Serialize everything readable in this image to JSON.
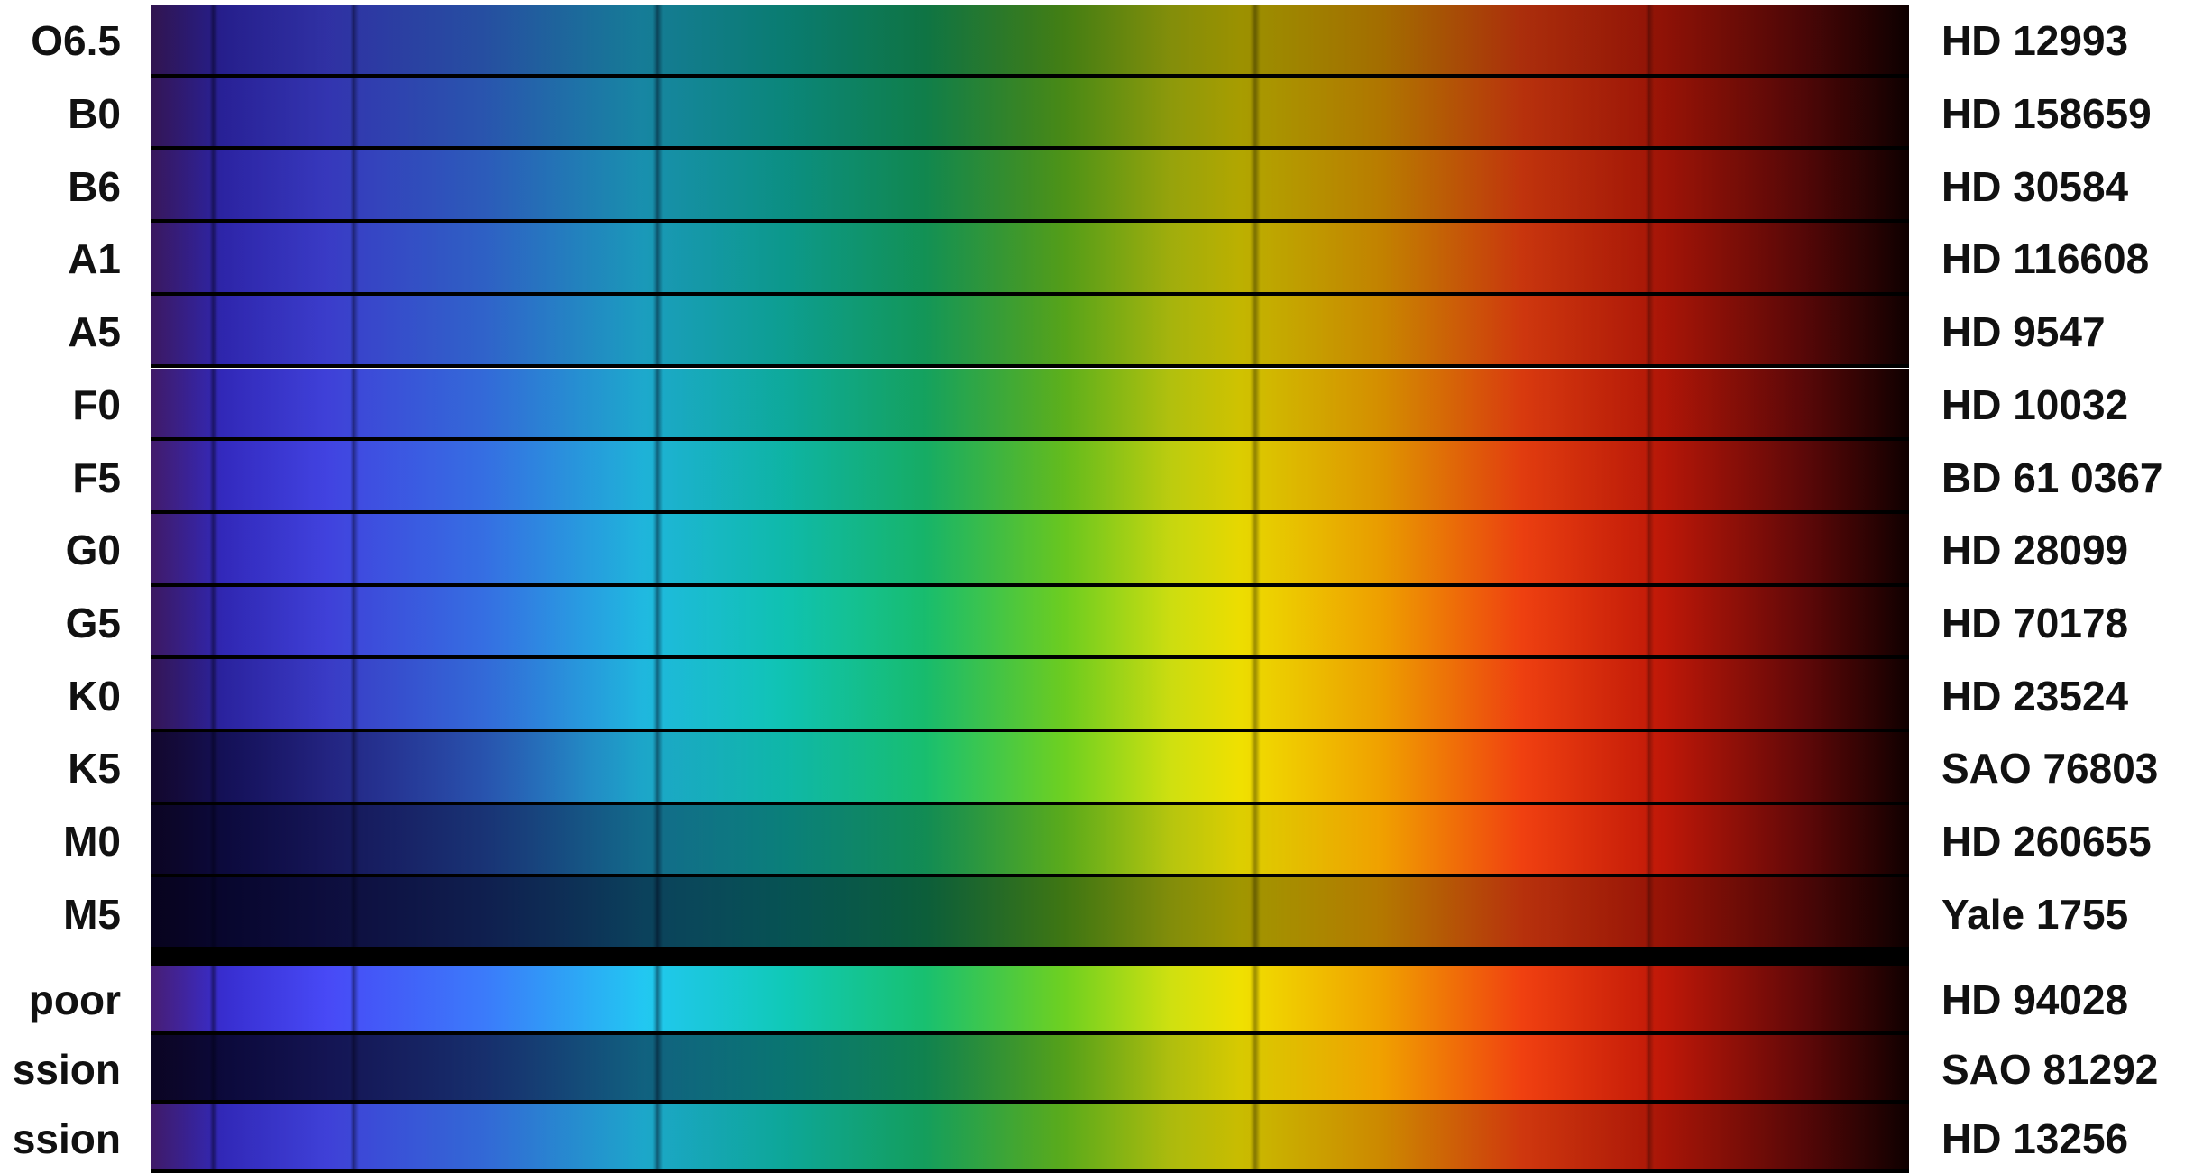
{
  "rows": [
    {
      "type": "O6.5",
      "star": "HD 12993"
    },
    {
      "type": "B0",
      "star": "HD 158659"
    },
    {
      "type": "B6",
      "star": "HD 30584"
    },
    {
      "type": "A1",
      "star": "HD 116608"
    },
    {
      "type": "A5",
      "star": "HD 9547"
    },
    {
      "type": "F0",
      "star": "HD 10032"
    },
    {
      "type": "F5",
      "star": "BD 61 0367"
    },
    {
      "type": "G0",
      "star": "HD 28099"
    },
    {
      "type": "G5",
      "star": "HD 70178"
    },
    {
      "type": "K0",
      "star": "HD 23524"
    },
    {
      "type": "K5",
      "star": "SAO 76803"
    },
    {
      "type": "M0",
      "star": "HD 260655"
    },
    {
      "type": "M5",
      "star": "Yale 1755"
    },
    {
      "type": "poor",
      "star": "HD 94028"
    },
    {
      "type": "ssion",
      "star": "SAO 81292"
    },
    {
      "type": "ssion",
      "star": "HD 13256"
    }
  ]
}
